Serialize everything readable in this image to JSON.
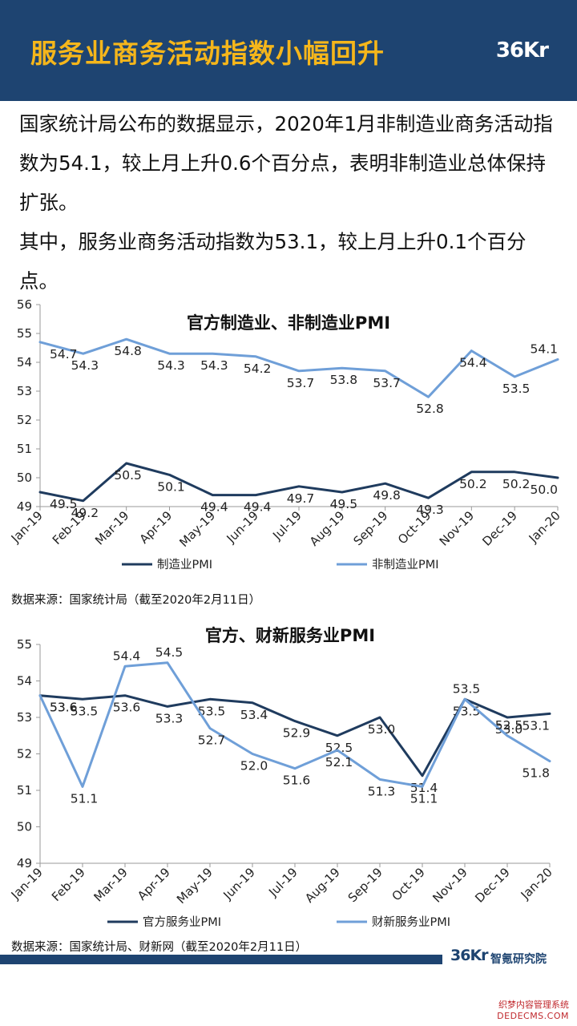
{
  "header": {
    "title": "服务业商务活动指数小幅回升",
    "logo": "36Kr"
  },
  "intro": {
    "paragraph1": "国家统计局公布的数据显示，2020年1月非制造业商务活动指数为54.1，较上月上升0.6个百分点，表明非制造业总体保持扩张。",
    "paragraph2": "其中，服务业商务活动指数为53.1，较上月上升0.1个百分点。"
  },
  "chart_data": [
    {
      "type": "line",
      "title": "官方制造业、非制造业PMI",
      "categories": [
        "Jan-19",
        "Feb-19",
        "Mar-19",
        "Apr-19",
        "May-19",
        "Jun-19",
        "Jul-19",
        "Aug-19",
        "Sep-19",
        "Oct-19",
        "Nov-19",
        "Dec-19",
        "Jan-20"
      ],
      "ylim": [
        49,
        56
      ],
      "yticks": [
        49,
        50,
        51,
        52,
        53,
        54,
        55,
        56
      ],
      "legend": "bottom",
      "grid": false,
      "series": [
        {
          "name": "制造业PMI",
          "color": "#1f3b5e",
          "values": [
            49.5,
            49.2,
            50.5,
            50.1,
            49.4,
            49.4,
            49.7,
            49.5,
            49.8,
            49.3,
            50.2,
            50.2,
            50.0
          ]
        },
        {
          "name": "非制造业PMI",
          "color": "#6f9fd8",
          "values": [
            54.7,
            54.3,
            54.8,
            54.3,
            54.3,
            54.2,
            53.7,
            53.8,
            53.7,
            52.8,
            54.4,
            53.5,
            54.1
          ]
        }
      ],
      "source": "数据来源：国家统计局（截至2020年2月11日）"
    },
    {
      "type": "line",
      "title": "官方、财新服务业PMI",
      "categories": [
        "Jan-19",
        "Feb-19",
        "Mar-19",
        "Apr-19",
        "May-19",
        "Jun-19",
        "Jul-19",
        "Aug-19",
        "Sep-19",
        "Oct-19",
        "Nov-19",
        "Dec-19",
        "Jan-20"
      ],
      "ylim": [
        49,
        55
      ],
      "yticks": [
        49,
        50,
        51,
        52,
        53,
        54,
        55
      ],
      "legend": "bottom",
      "grid": false,
      "series": [
        {
          "name": "官方服务业PMI",
          "color": "#1f3b5e",
          "values": [
            53.6,
            53.5,
            53.6,
            53.3,
            53.5,
            53.4,
            52.9,
            52.5,
            53.0,
            51.4,
            53.5,
            53.0,
            53.1
          ]
        },
        {
          "name": "财新服务业PMI",
          "color": "#6f9fd8",
          "values": [
            53.6,
            51.1,
            54.4,
            54.5,
            52.7,
            52.0,
            51.6,
            52.1,
            51.3,
            51.1,
            53.5,
            52.5,
            51.8
          ]
        }
      ],
      "source": "数据来源：国家统计局、财新网（截至2020年2月11日）"
    }
  ],
  "footer": {
    "logo": "36Kr",
    "org": "智氪研究院"
  },
  "watermark": {
    "line1": "织梦内容管理系统",
    "line2": "DEDECMS.COM"
  }
}
